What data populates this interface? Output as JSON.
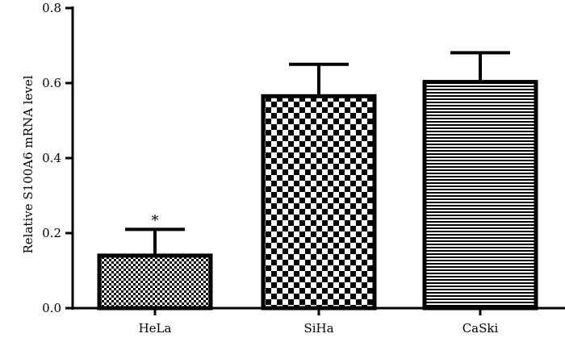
{
  "chart_data": {
    "type": "bar",
    "title": "",
    "xlabel": "",
    "ylabel": "Relative S100A6 mRNA level",
    "ylim": [
      0,
      0.8
    ],
    "yticks": [
      0.0,
      0.2,
      0.4,
      0.6,
      0.8
    ],
    "ytick_labels": [
      "0.0",
      "0.2",
      "0.4",
      "0.6",
      "0.8"
    ],
    "categories": [
      "HeLa",
      "SiHa",
      "CaSki"
    ],
    "values": [
      0.14,
      0.565,
      0.603
    ],
    "errors": [
      0.07,
      0.085,
      0.078
    ],
    "patterns": [
      "fine-checker",
      "coarse-checker",
      "horizontal-stripes"
    ],
    "annotations": [
      {
        "category": "HeLa",
        "text": "*"
      }
    ],
    "grid": false,
    "legend": "none",
    "colors": {
      "bar_edge": "#000000",
      "fill_light": "#ffffff",
      "fill_dark": "#000000"
    }
  }
}
